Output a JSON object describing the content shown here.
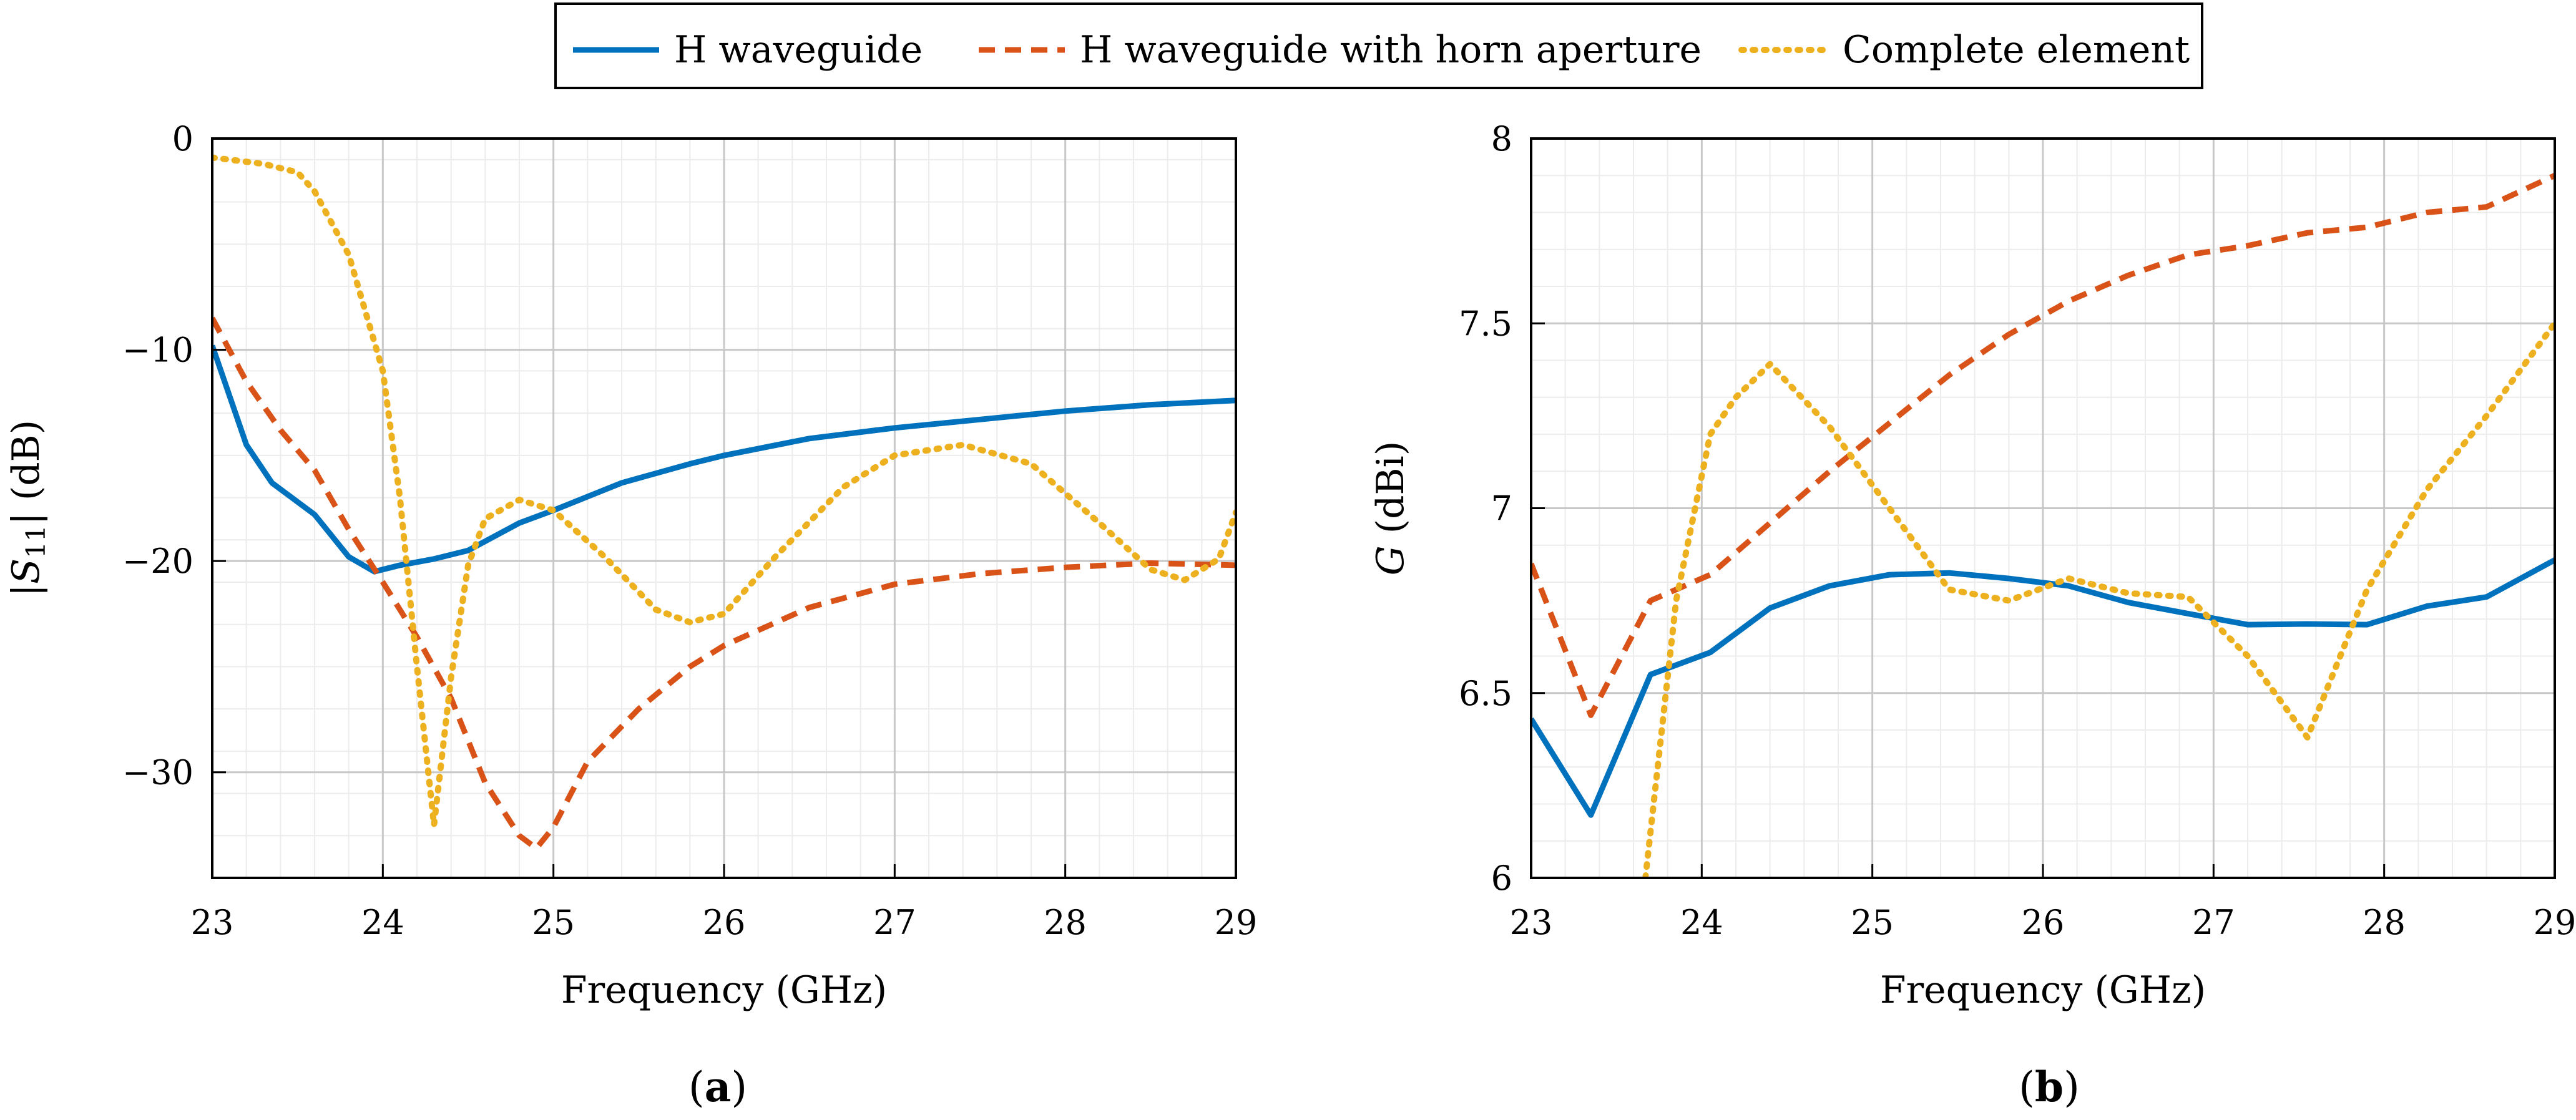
{
  "legend": {
    "entries": [
      {
        "label": "H waveguide",
        "style": "solid",
        "color": "#0072bd"
      },
      {
        "label": "H waveguide with horn aperture",
        "style": "dashed",
        "color": "#d95319"
      },
      {
        "label": "Complete element",
        "style": "dotted",
        "color": "#edb120"
      }
    ]
  },
  "chart_data": [
    {
      "type": "line",
      "panel": "a",
      "caption": {
        "open": "(",
        "tag": "a",
        "close": ")"
      },
      "xlabel": "Frequency (GHz)",
      "ylabel": {
        "prefix": "|",
        "var": "S",
        "sub": "11",
        "suffix": "| (dB)"
      },
      "xlim": [
        23,
        29
      ],
      "ylim": [
        -35,
        0
      ],
      "xticks": [
        23,
        24,
        25,
        26,
        27,
        28,
        29
      ],
      "yticks": [
        0,
        -10,
        -20,
        -30
      ],
      "ytick_labels": [
        "0",
        "−10",
        "−20",
        "−30"
      ],
      "grid": true,
      "series": [
        {
          "name": "H waveguide",
          "color": "#0072bd",
          "style": "solid",
          "x": [
            23,
            23.2,
            23.35,
            23.6,
            23.8,
            23.95,
            24.1,
            24.3,
            24.5,
            24.8,
            25.0,
            25.4,
            25.8,
            26.0,
            26.5,
            27.0,
            27.5,
            28.0,
            28.5,
            29.0
          ],
          "y": [
            -9.8,
            -14.5,
            -16.3,
            -17.8,
            -19.8,
            -20.5,
            -20.2,
            -19.9,
            -19.5,
            -18.2,
            -17.6,
            -16.3,
            -15.4,
            -15.0,
            -14.2,
            -13.7,
            -13.3,
            -12.9,
            -12.6,
            -12.4
          ]
        },
        {
          "name": "H waveguide with horn aperture",
          "color": "#d95319",
          "style": "dashed",
          "x": [
            23,
            23.2,
            23.4,
            23.6,
            23.8,
            24.0,
            24.2,
            24.4,
            24.6,
            24.8,
            24.9,
            25.0,
            25.2,
            25.5,
            25.8,
            26.0,
            26.5,
            27.0,
            27.5,
            28.0,
            28.5,
            29.0
          ],
          "y": [
            -8.5,
            -11.5,
            -13.8,
            -15.7,
            -18.5,
            -21.0,
            -23.6,
            -26.5,
            -30.5,
            -33.0,
            -33.6,
            -32.6,
            -29.5,
            -27.0,
            -25.0,
            -24.0,
            -22.2,
            -21.1,
            -20.6,
            -20.3,
            -20.1,
            -20.2
          ]
        },
        {
          "name": "Complete element",
          "color": "#edb120",
          "style": "dotted",
          "x": [
            23,
            23.3,
            23.5,
            23.6,
            23.8,
            24.0,
            24.1,
            24.2,
            24.3,
            24.4,
            24.5,
            24.6,
            24.8,
            25.0,
            25.3,
            25.6,
            25.8,
            26.0,
            26.3,
            26.7,
            27.0,
            27.4,
            27.8,
            28.2,
            28.5,
            28.7,
            28.9,
            29.0
          ],
          "y": [
            -0.9,
            -1.2,
            -1.6,
            -2.5,
            -5.5,
            -11.0,
            -17.0,
            -25.0,
            -32.5,
            -25.5,
            -20.2,
            -18.0,
            -17.1,
            -17.6,
            -19.8,
            -22.3,
            -22.9,
            -22.5,
            -19.8,
            -16.5,
            -15.0,
            -14.5,
            -15.4,
            -18.2,
            -20.4,
            -20.9,
            -19.9,
            -17.7
          ]
        }
      ]
    },
    {
      "type": "line",
      "panel": "b",
      "caption": {
        "open": "(",
        "tag": "b",
        "close": ")"
      },
      "xlabel": "Frequency (GHz)",
      "ylabel": {
        "prefix": "",
        "var": "G",
        "sub": "",
        "suffix": " (dBi)"
      },
      "xlim": [
        23,
        29
      ],
      "ylim": [
        6,
        8
      ],
      "xticks": [
        23,
        24,
        25,
        26,
        27,
        28,
        29
      ],
      "yticks": [
        6,
        6.5,
        7,
        7.5,
        8
      ],
      "ytick_labels": [
        "6",
        "6.5",
        "7",
        "7.5",
        "8"
      ],
      "grid": true,
      "series": [
        {
          "name": "H waveguide",
          "color": "#0072bd",
          "style": "solid",
          "x": [
            23,
            23.35,
            23.7,
            24.05,
            24.4,
            24.75,
            25.1,
            25.45,
            25.8,
            26.15,
            26.5,
            26.85,
            27.2,
            27.55,
            27.9,
            28.25,
            28.6,
            29.0
          ],
          "y": [
            6.43,
            6.17,
            6.55,
            6.61,
            6.73,
            6.79,
            6.82,
            6.825,
            6.81,
            6.79,
            6.745,
            6.715,
            6.685,
            6.687,
            6.685,
            6.735,
            6.76,
            6.86
          ]
        },
        {
          "name": "H waveguide with horn aperture",
          "color": "#d95319",
          "style": "dashed",
          "x": [
            23,
            23.35,
            23.7,
            24.05,
            24.4,
            24.75,
            25.1,
            25.45,
            25.8,
            26.15,
            26.5,
            26.85,
            27.2,
            27.55,
            27.9,
            28.25,
            28.6,
            29.0
          ],
          "y": [
            6.85,
            6.44,
            6.75,
            6.82,
            6.96,
            7.1,
            7.23,
            7.36,
            7.47,
            7.56,
            7.63,
            7.685,
            7.71,
            7.745,
            7.76,
            7.8,
            7.815,
            7.9
          ]
        },
        {
          "name": "Complete element",
          "color": "#edb120",
          "style": "dotted",
          "x": [
            23.67,
            23.85,
            24.05,
            24.2,
            24.4,
            24.75,
            25.1,
            25.45,
            25.8,
            26.15,
            26.5,
            26.85,
            27.2,
            27.55,
            27.9,
            28.25,
            28.6,
            29.0
          ],
          "y": [
            6.0,
            6.75,
            7.2,
            7.3,
            7.39,
            7.22,
            7.0,
            6.78,
            6.75,
            6.81,
            6.77,
            6.76,
            6.6,
            6.38,
            6.78,
            7.05,
            7.25,
            7.5
          ]
        }
      ]
    }
  ]
}
